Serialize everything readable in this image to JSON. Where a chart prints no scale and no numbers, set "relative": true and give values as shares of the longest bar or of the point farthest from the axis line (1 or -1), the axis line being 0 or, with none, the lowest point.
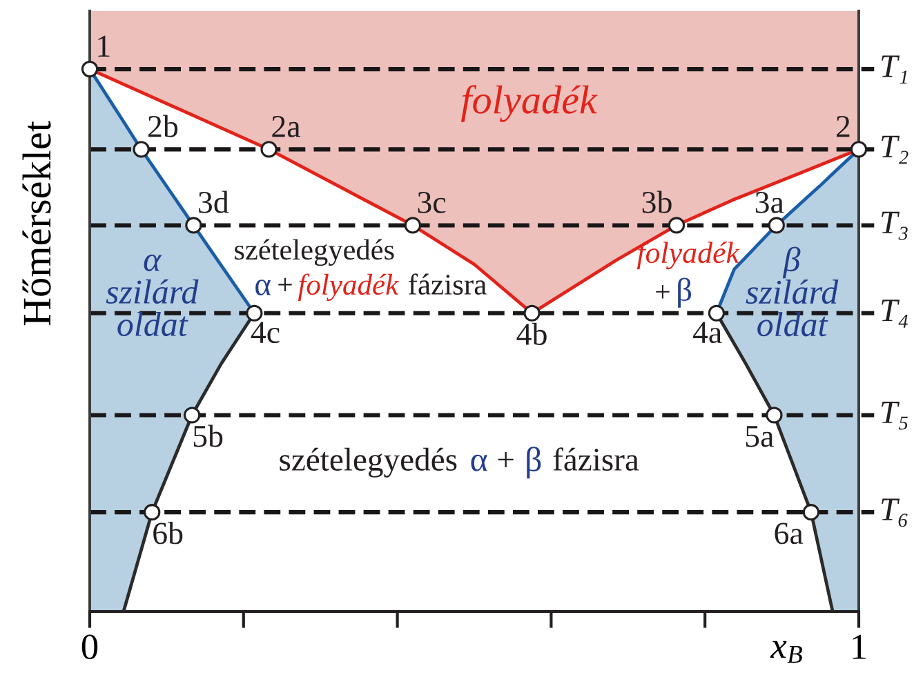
{
  "chart_data": {
    "type": "line",
    "relative": true,
    "ylabel": "Hőmérséklet",
    "xlabel": "x$_{B}$",
    "xlim": [
      0,
      1
    ],
    "xticks": [
      0,
      {
        "value": 0.2,
        "label": null
      },
      {
        "value": 0.4,
        "label": null
      },
      {
        "value": 0.6,
        "label": null
      },
      {
        "value": 0.8,
        "label": null
      },
      1
    ],
    "tick_labels": "x",
    "series": [
      {
        "color": "#e2231a",
        "x": [
          0,
          0.233,
          0.42,
          0.5,
          0.575,
          0.685,
          0.763,
          0.835,
          0.925,
          1
        ],
        "values": [
          1,
          0.852,
          0.712,
          0.64,
          0.55,
          0.648,
          0.712,
          0.758,
          0.809,
          0.852
        ],
        "lower": [
          1,
          0.852,
          0.712,
          0.64,
          0.55,
          0.648,
          0.712,
          0.758,
          0.809,
          0.852
        ],
        "upper": [
          1.107,
          1.107,
          1.107,
          1.107,
          1.107,
          1.107,
          1.107,
          1.107,
          1.107,
          1.107
        ]
      },
      {
        "color": "#1b5ea8",
        "x": [
          0,
          0.044,
          0.067,
          0.081,
          0.133,
          0.135,
          0.171,
          0.214
        ],
        "values": [
          1,
          0.903,
          0.852,
          0.823,
          0.716,
          0.712,
          0.638,
          0.55
        ],
        "lower": [
          0,
          0,
          0.114,
          0.183,
          0.362,
          0.367,
          0.457,
          0.55
        ],
        "upper": [
          1,
          0.903,
          0.852,
          0.823,
          0.716,
          0.712,
          0.638,
          0.55
        ]
      },
      {
        "color": "#1b5ea8",
        "x": [
          0.815,
          0.838,
          0.853,
          0.89,
          0.893,
          0.938,
          0.949,
          0.966,
          1
        ],
        "values": [
          0.55,
          0.631,
          0.653,
          0.708,
          0.712,
          0.77,
          0.784,
          0.807,
          0.852
        ],
        "lower": [
          0.55,
          0.494,
          0.457,
          0.362,
          0.351,
          0.183,
          0.111,
          0,
          0
        ],
        "upper": [
          0.55,
          0.631,
          0.653,
          0.708,
          0.712,
          0.77,
          0.784,
          0.807,
          0.852
        ]
      },
      {
        "color": "#2b2b2b",
        "x": [
          0.214,
          0.171,
          0.133,
          0.081,
          0.044
        ],
        "values": [
          0.55,
          0.457,
          0.362,
          0.183,
          0
        ]
      },
      {
        "color": "#2b2b2b",
        "x": [
          0.815,
          0.853,
          0.89,
          0.938,
          0.966
        ],
        "values": [
          0.55,
          0.457,
          0.362,
          0.183,
          0
        ]
      },
      {
        "type": "scatter",
        "marker": "circle",
        "color": "#ffffff",
        "x": [
          0,
          1,
          0.233,
          0.067,
          0.893,
          0.763,
          0.42,
          0.135,
          0.815,
          0.575,
          0.214,
          0.89,
          0.133,
          0.938,
          0.081
        ],
        "values": [
          1,
          0.852,
          0.852,
          0.852,
          0.712,
          0.712,
          0.712,
          0.712,
          0.55,
          0.55,
          0.55,
          0.362,
          0.362,
          0.183,
          0.183
        ]
      }
    ],
    "ref_lines": [
      {
        "axis": "y",
        "value": 1,
        "label": "T₁",
        "color": "#1a1718",
        "line_style": "dashed"
      },
      {
        "axis": "y",
        "value": 0.852,
        "label": "T₂",
        "color": "#1a1718",
        "line_style": "dashed"
      },
      {
        "axis": "y",
        "value": 0.712,
        "label": "T₃",
        "color": "#1a1718",
        "line_style": "dashed"
      },
      {
        "axis": "y",
        "value": 0.55,
        "label": "T₄",
        "color": "#1a1718",
        "line_style": "dashed"
      },
      {
        "axis": "y",
        "value": 0.362,
        "label": "T₅",
        "color": "#1a1718",
        "line_style": "dashed"
      },
      {
        "axis": "y",
        "value": 0.183,
        "label": "T₆",
        "color": "#1a1718",
        "line_style": "dashed"
      }
    ],
    "annotations": [
      {
        "text": "1",
        "x": 0,
        "y": 1
      },
      {
        "text": "2",
        "x": 1,
        "y": 0.852
      },
      {
        "text": "2a",
        "x": 0.233,
        "y": 0.852
      },
      {
        "text": "2b",
        "x": 0.067,
        "y": 0.852
      },
      {
        "text": "3a",
        "x": 0.893,
        "y": 0.712
      },
      {
        "text": "3b",
        "x": 0.763,
        "y": 0.712
      },
      {
        "text": "3c",
        "x": 0.42,
        "y": 0.712
      },
      {
        "text": "3d",
        "x": 0.135,
        "y": 0.712
      },
      {
        "text": "4a",
        "x": 0.815,
        "y": 0.55
      },
      {
        "text": "4b",
        "x": 0.575,
        "y": 0.55
      },
      {
        "text": "4c",
        "x": 0.214,
        "y": 0.55
      },
      {
        "text": "5a",
        "x": 0.89,
        "y": 0.362
      },
      {
        "text": "5b",
        "x": 0.133,
        "y": 0.362
      },
      {
        "text": "6a",
        "x": 0.938,
        "y": 0.183
      },
      {
        "text": "6b",
        "x": 0.081,
        "y": 0.183
      },
      "folyadék",
      "α\nszilárd\noldat",
      "β\nszilárd\noldat",
      "szételegyedés",
      "α",
      "+",
      "folyadék",
      "fázisra",
      "folyadék",
      "+",
      "β",
      "szételegyedés",
      "α",
      "+",
      "β",
      "fázisra"
    ]
  }
}
